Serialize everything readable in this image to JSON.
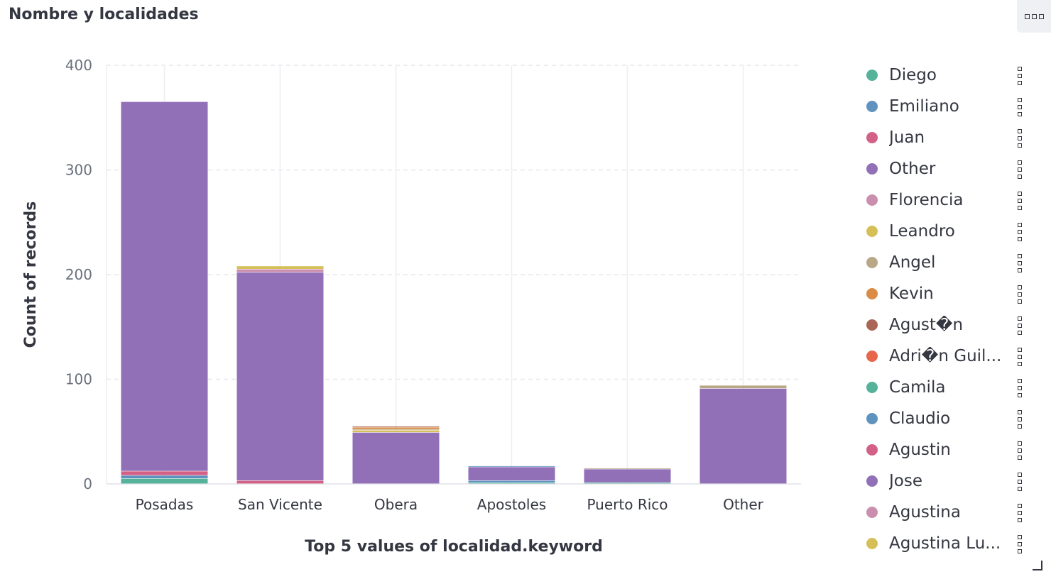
{
  "panel": {
    "title": "Nombre y localidades"
  },
  "chart_data": {
    "type": "bar",
    "stacked": true,
    "categories": [
      "Posadas",
      "San Vicente",
      "Obera",
      "Apostoles",
      "Puerto Rico",
      "Other"
    ],
    "xlabel": "Top 5 values of localidad.keyword",
    "ylabel": "Count of records",
    "ylim": [
      0,
      400
    ],
    "yticks": [
      "0",
      "100",
      "200",
      "300",
      "400"
    ],
    "grid": true,
    "legend_position": "right",
    "series": [
      {
        "name": "Diego",
        "color": "#54b399",
        "values": [
          5,
          0,
          0,
          1,
          1,
          0
        ]
      },
      {
        "name": "Emiliano",
        "color": "#6092c0",
        "values": [
          3,
          0,
          0,
          2,
          0,
          0
        ]
      },
      {
        "name": "Juan",
        "color": "#d36086",
        "values": [
          4,
          3,
          0,
          0,
          0,
          0
        ]
      },
      {
        "name": "Other",
        "color": "#9170b8",
        "values": [
          353,
          199,
          49,
          13,
          13,
          91
        ]
      },
      {
        "name": "Florencia",
        "color": "#ca8eae",
        "values": [
          0,
          3,
          0,
          0,
          0,
          0
        ]
      },
      {
        "name": "Leandro",
        "color": "#d6bf57",
        "values": [
          0,
          3,
          2,
          0,
          0,
          0
        ]
      },
      {
        "name": "Angel",
        "color": "#b9a888",
        "values": [
          0,
          0,
          1,
          0,
          1,
          3
        ]
      },
      {
        "name": "Kevin",
        "color": "#da8b45",
        "values": [
          0,
          0,
          2,
          0,
          0,
          0
        ]
      },
      {
        "name": "Agust�n",
        "color": "#aa6556",
        "values": [
          0,
          0,
          1,
          0,
          0,
          0
        ]
      },
      {
        "name": "Adri�n Guil...",
        "color": "#e7664c",
        "values": [
          0,
          0,
          0,
          0,
          0,
          0
        ]
      },
      {
        "name": "Camila",
        "color": "#54b399",
        "values": [
          0,
          0,
          0,
          0,
          0,
          0
        ]
      },
      {
        "name": "Claudio",
        "color": "#6092c0",
        "values": [
          0,
          0,
          0,
          1,
          0,
          0
        ]
      },
      {
        "name": "Agustin",
        "color": "#d36086",
        "values": [
          0,
          0,
          0,
          0,
          0,
          0
        ]
      },
      {
        "name": "Jose",
        "color": "#9170b8",
        "values": [
          0,
          0,
          0,
          0,
          0,
          0
        ]
      },
      {
        "name": "Agustina",
        "color": "#ca8eae",
        "values": [
          0,
          0,
          0,
          0,
          0,
          0
        ]
      },
      {
        "name": "Agustina Lu...",
        "color": "#d6bf57",
        "values": [
          0,
          0,
          0,
          0,
          0,
          0
        ]
      }
    ]
  }
}
